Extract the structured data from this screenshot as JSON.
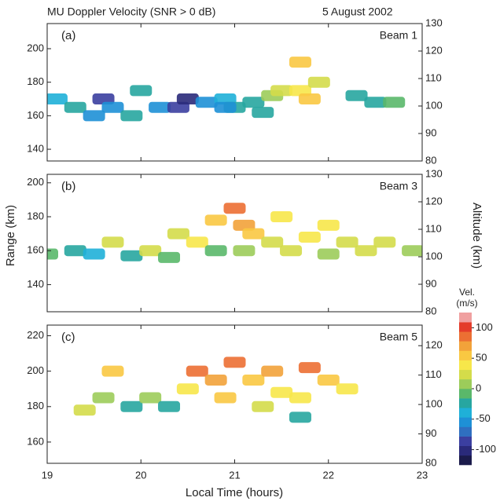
{
  "figure": {
    "title": "MU  Doppler Velocity  (SNR > 0 dB)",
    "date": "5 August 2002",
    "xlabel": "Local Time (hours)",
    "ylabel": "Range (km)",
    "y2label": "Altitude (km)"
  },
  "chart_data": [
    {
      "type": "heatmap",
      "panel": "(a)",
      "beam": "Beam 1",
      "xlim": [
        19,
        23
      ],
      "xticks": [
        19,
        20,
        21,
        22,
        23
      ],
      "ylim": [
        133,
        215
      ],
      "yticks": [
        140,
        160,
        180,
        200
      ],
      "y2lim": [
        80,
        130
      ],
      "y2ticks": [
        80,
        90,
        100,
        110,
        120,
        130
      ],
      "x": [
        19.1,
        19.3,
        19.5,
        19.6,
        19.7,
        19.9,
        20.0,
        20.2,
        20.4,
        20.5,
        20.7,
        20.9,
        21.0,
        21.2,
        21.4,
        21.5,
        21.7,
        21.8,
        21.9,
        22.3,
        22.5,
        22.7,
        21.7,
        20.9,
        21.3
      ],
      "y": [
        170,
        165,
        160,
        170,
        165,
        160,
        175,
        165,
        165,
        170,
        168,
        170,
        165,
        168,
        172,
        175,
        175,
        170,
        180,
        172,
        168,
        168,
        192,
        165,
        162
      ],
      "values": [
        -40,
        -30,
        -60,
        -80,
        -50,
        -20,
        -30,
        -60,
        -90,
        -100,
        -50,
        -40,
        -20,
        -30,
        10,
        20,
        40,
        60,
        30,
        -30,
        -20,
        -10,
        50,
        -50,
        -30
      ]
    },
    {
      "type": "heatmap",
      "panel": "(b)",
      "beam": "Beam 3",
      "xlim": [
        19,
        23
      ],
      "xticks": [
        19,
        20,
        21,
        22,
        23
      ],
      "ylim": [
        124,
        205
      ],
      "yticks": [
        140,
        160,
        180,
        200
      ],
      "y2lim": [
        80,
        130
      ],
      "y2ticks": [
        80,
        90,
        100,
        110,
        120,
        130
      ],
      "x": [
        19.0,
        19.3,
        19.5,
        19.7,
        19.9,
        20.1,
        20.3,
        20.4,
        20.6,
        20.8,
        20.8,
        21.0,
        21.1,
        21.2,
        21.4,
        21.5,
        21.6,
        21.8,
        22.0,
        22.2,
        22.4,
        22.6,
        22.9,
        21.1,
        22.0
      ],
      "y": [
        158,
        160,
        158,
        165,
        157,
        160,
        156,
        170,
        165,
        160,
        178,
        185,
        175,
        170,
        165,
        180,
        160,
        168,
        175,
        165,
        160,
        165,
        160,
        160,
        158
      ],
      "values": [
        -10,
        -30,
        -40,
        20,
        -20,
        30,
        -10,
        20,
        40,
        -10,
        60,
        80,
        70,
        60,
        30,
        40,
        20,
        40,
        40,
        30,
        20,
        30,
        0,
        10,
        10
      ]
    },
    {
      "type": "heatmap",
      "panel": "(c)",
      "beam": "Beam 5",
      "xlim": [
        19,
        23
      ],
      "xticks": [
        19,
        20,
        21,
        22,
        23
      ],
      "ylim": [
        148,
        226
      ],
      "yticks": [
        160,
        180,
        200,
        220
      ],
      "y2lim": [
        80,
        127
      ],
      "y2ticks": [
        80,
        90,
        100,
        110,
        120
      ],
      "x": [
        19.4,
        19.6,
        19.7,
        19.9,
        20.1,
        20.3,
        20.5,
        20.6,
        20.8,
        20.9,
        21.0,
        21.2,
        21.4,
        21.5,
        21.7,
        21.8,
        22.0,
        22.2,
        21.7,
        21.3
      ],
      "y": [
        178,
        185,
        200,
        180,
        185,
        180,
        190,
        200,
        195,
        185,
        205,
        195,
        200,
        188,
        185,
        202,
        195,
        190,
        174,
        180
      ],
      "values": [
        20,
        0,
        50,
        -20,
        10,
        -30,
        40,
        90,
        70,
        50,
        90,
        60,
        70,
        40,
        40,
        80,
        50,
        40,
        -30,
        30
      ],
      "colorbar": {
        "label": "Vel.",
        "units": "(m/s)",
        "clim": [
          -125,
          125
        ],
        "ticks": [
          -100,
          -50,
          0,
          50,
          100
        ],
        "colors": [
          "#1b1b4b",
          "#2a2a7a",
          "#3b3fa0",
          "#2f6fc0",
          "#1e90d6",
          "#1fb0d8",
          "#27a6a0",
          "#5ab86a",
          "#9ccc5a",
          "#d4dc4a",
          "#f7e74a",
          "#f9c842",
          "#f2a23a",
          "#ec6f33",
          "#e43c2a",
          "#f0a0a0"
        ]
      }
    }
  ]
}
